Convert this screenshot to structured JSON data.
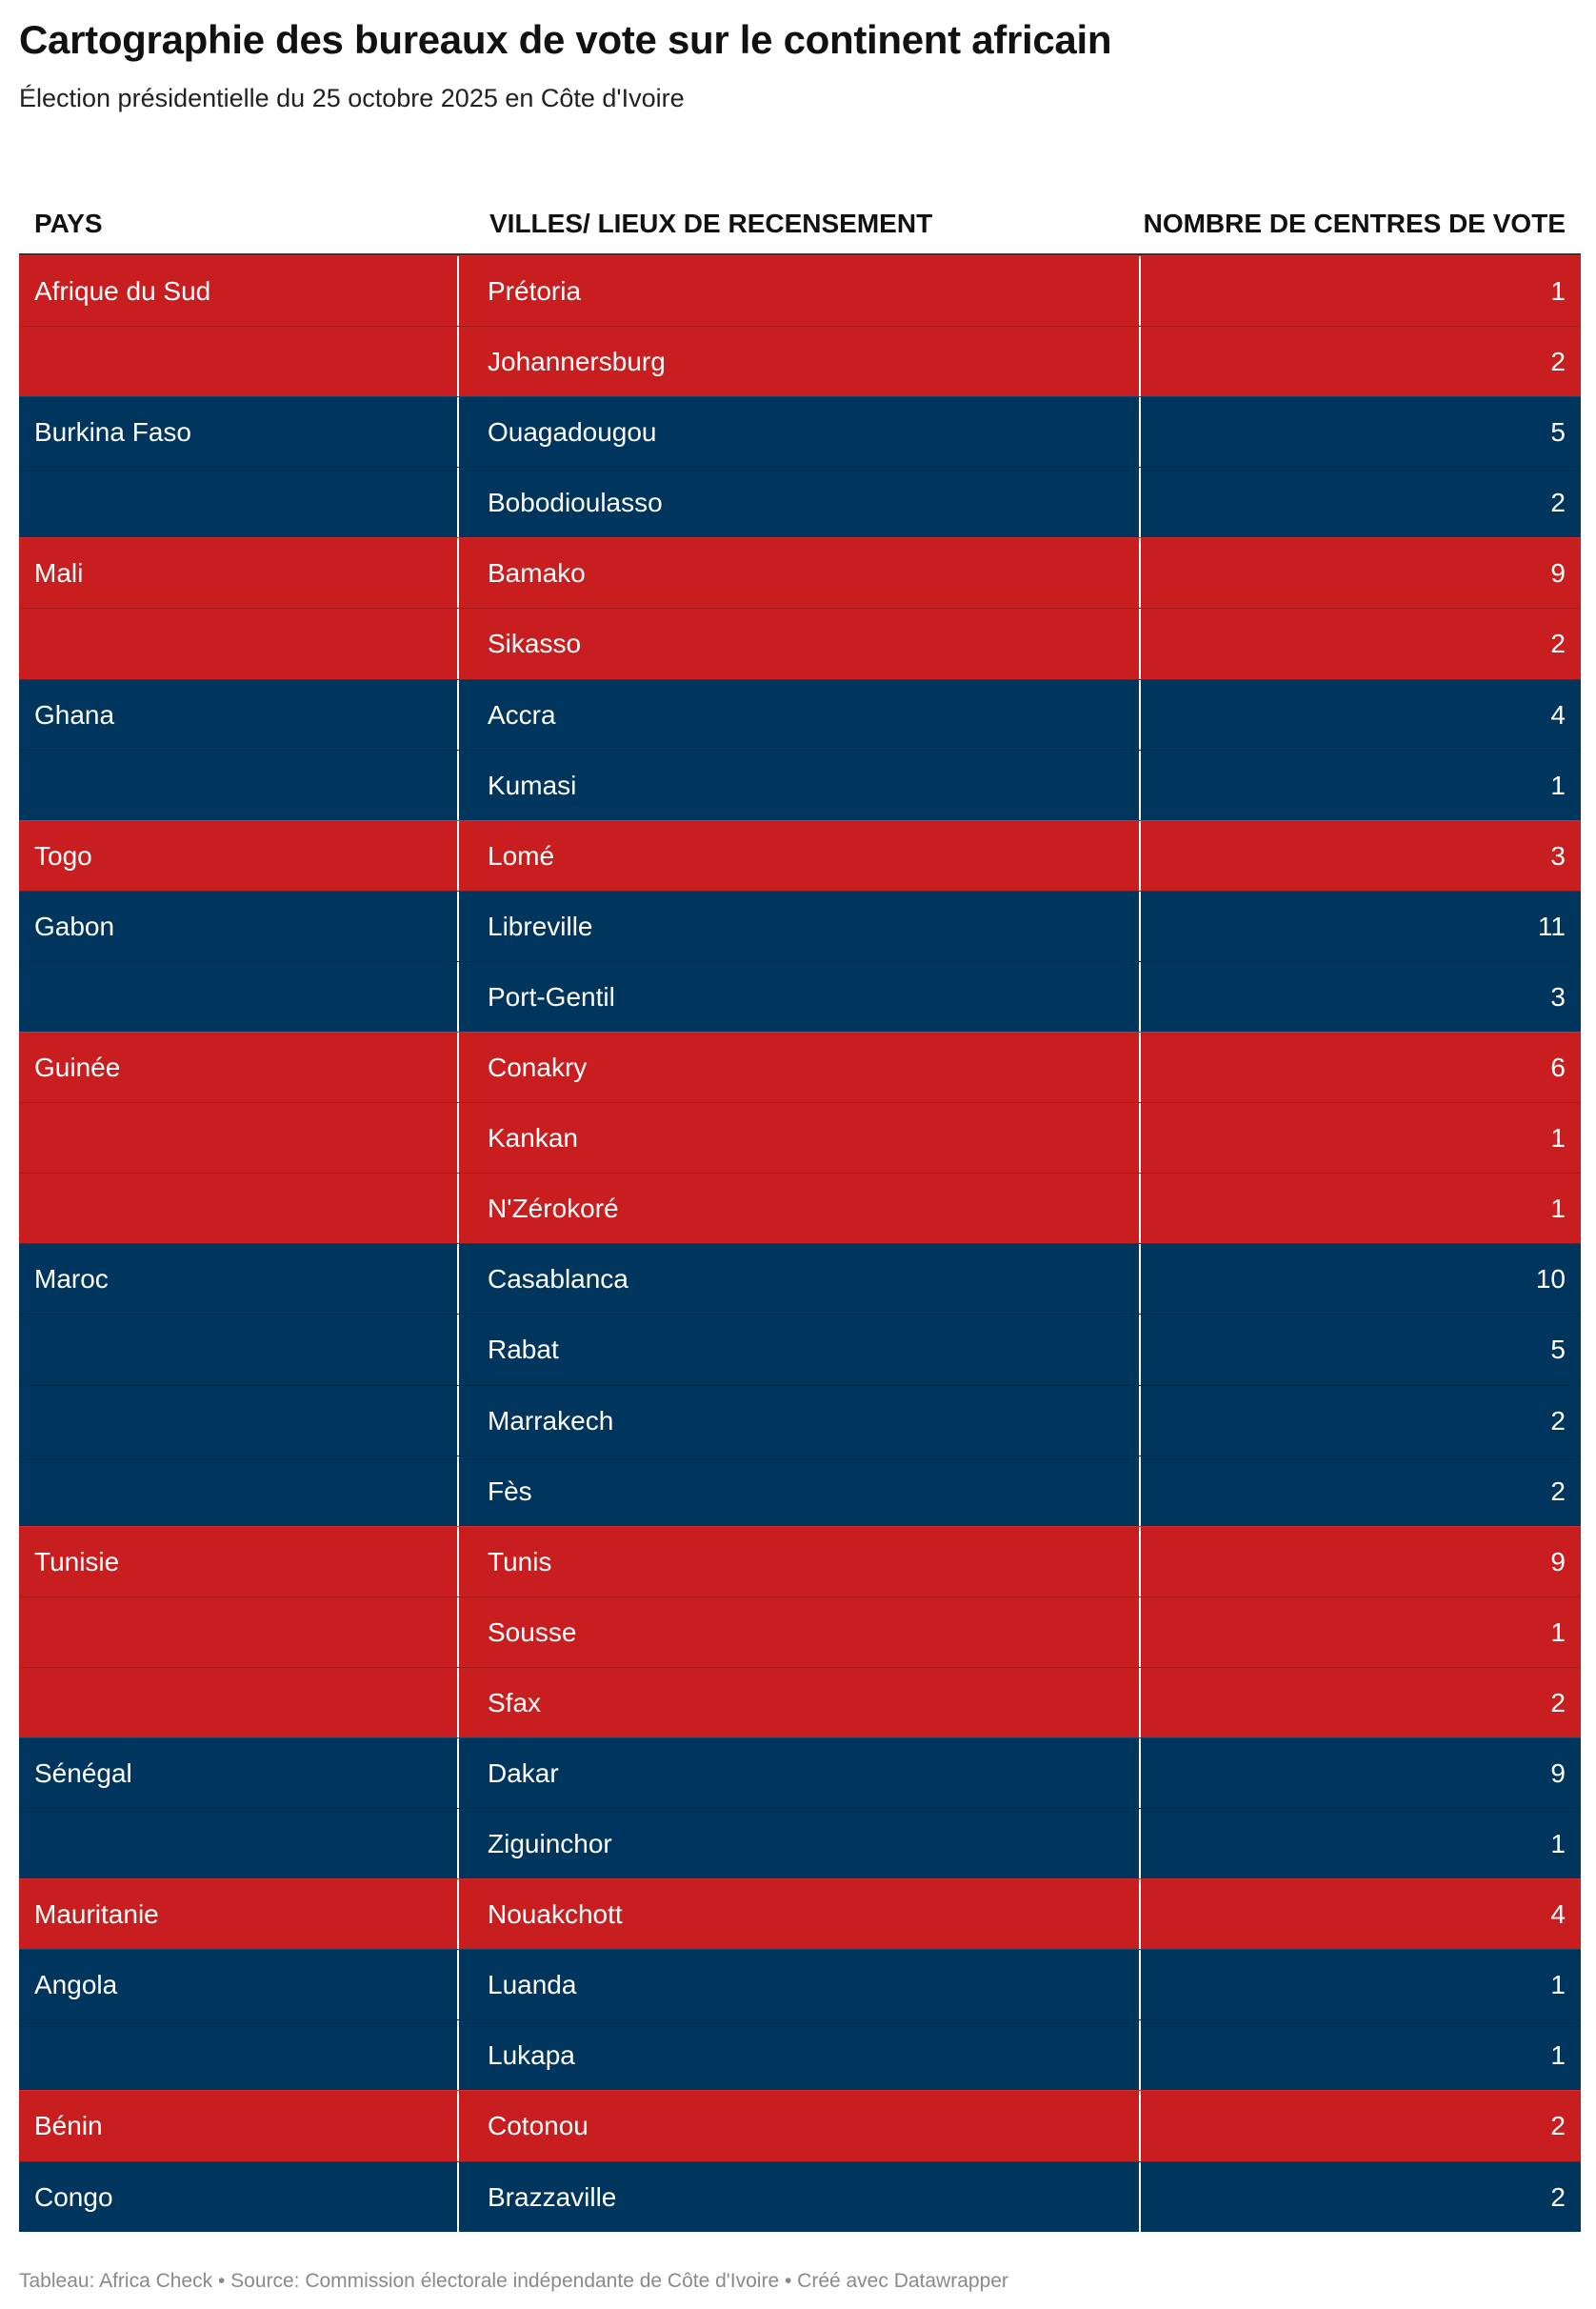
{
  "title": "Cartographie des bureaux de vote sur le continent africain",
  "subtitle": "Élection présidentielle du 25 octobre 2025 en Côte d'Ivoire",
  "footer": "Tableau: Africa Check • Source: Commission électorale indépendante de Côte d'Ivoire • Créé avec Datawrapper",
  "colors": {
    "red": "#c91e1f",
    "blue": "#00365d"
  },
  "chart_data": {
    "type": "table",
    "columns": [
      "PAYS",
      "VILLES/ LIEUX DE RECENSEMENT",
      "NOMBRE DE CENTRES DE VOTE"
    ],
    "rows": [
      {
        "pays": "Afrique du Sud",
        "ville": "Prétoria",
        "centres": 1,
        "color": "red"
      },
      {
        "pays": "",
        "ville": "Johannersburg",
        "centres": 2,
        "color": "red"
      },
      {
        "pays": "Burkina Faso",
        "ville": "Ouagadougou",
        "centres": 5,
        "color": "blue"
      },
      {
        "pays": "",
        "ville": "Bobodioulasso",
        "centres": 2,
        "color": "blue"
      },
      {
        "pays": "Mali",
        "ville": "Bamako",
        "centres": 9,
        "color": "red"
      },
      {
        "pays": "",
        "ville": "Sikasso",
        "centres": 2,
        "color": "red"
      },
      {
        "pays": "Ghana",
        "ville": "Accra",
        "centres": 4,
        "color": "blue"
      },
      {
        "pays": "",
        "ville": "Kumasi",
        "centres": 1,
        "color": "blue"
      },
      {
        "pays": "Togo",
        "ville": "Lomé",
        "centres": 3,
        "color": "red"
      },
      {
        "pays": "Gabon",
        "ville": "Libreville",
        "centres": 11,
        "color": "blue"
      },
      {
        "pays": "",
        "ville": "Port-Gentil",
        "centres": 3,
        "color": "blue"
      },
      {
        "pays": "Guinée",
        "ville": "Conakry",
        "centres": 6,
        "color": "red"
      },
      {
        "pays": "",
        "ville": "Kankan",
        "centres": 1,
        "color": "red"
      },
      {
        "pays": "",
        "ville": "N'Zérokoré",
        "centres": 1,
        "color": "red"
      },
      {
        "pays": "Maroc",
        "ville": "Casablanca",
        "centres": 10,
        "color": "blue"
      },
      {
        "pays": "",
        "ville": "Rabat",
        "centres": 5,
        "color": "blue"
      },
      {
        "pays": "",
        "ville": "Marrakech",
        "centres": 2,
        "color": "blue"
      },
      {
        "pays": "",
        "ville": "Fès",
        "centres": 2,
        "color": "blue"
      },
      {
        "pays": "Tunisie",
        "ville": "Tunis",
        "centres": 9,
        "color": "red"
      },
      {
        "pays": "",
        "ville": "Sousse",
        "centres": 1,
        "color": "red"
      },
      {
        "pays": "",
        "ville": "Sfax",
        "centres": 2,
        "color": "red"
      },
      {
        "pays": "Sénégal",
        "ville": "Dakar",
        "centres": 9,
        "color": "blue"
      },
      {
        "pays": "",
        "ville": "Ziguinchor",
        "centres": 1,
        "color": "blue"
      },
      {
        "pays": "Mauritanie",
        "ville": "Nouakchott",
        "centres": 4,
        "color": "red"
      },
      {
        "pays": "Angola",
        "ville": "Luanda",
        "centres": 1,
        "color": "blue"
      },
      {
        "pays": "",
        "ville": "Lukapa",
        "centres": 1,
        "color": "blue"
      },
      {
        "pays": "Bénin",
        "ville": "Cotonou",
        "centres": 2,
        "color": "red"
      },
      {
        "pays": "Congo",
        "ville": "Brazzaville",
        "centres": 2,
        "color": "blue"
      }
    ]
  }
}
